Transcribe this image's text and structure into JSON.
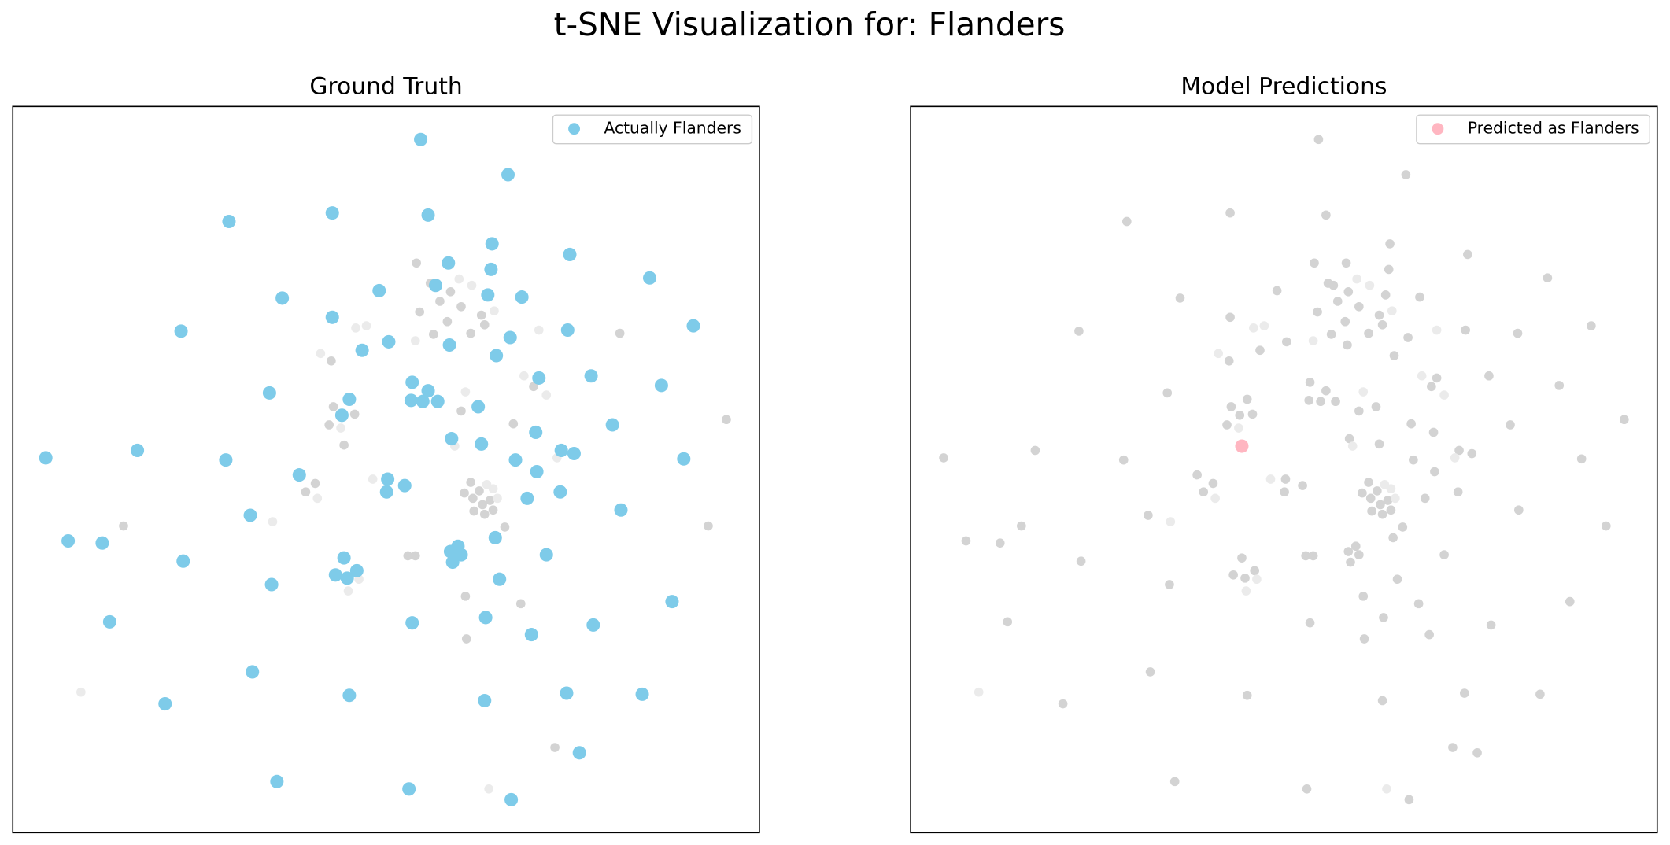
{
  "title": "t-SNE Visualization for:  Flanders",
  "chart_data": [
    {
      "type": "scatter",
      "title": "Ground Truth",
      "xlim": [
        12,
        713
      ],
      "ylim": [
        782,
        100
      ],
      "legend": "upper right",
      "series": [
        {
          "color": "#d3d3d3",
          "x": [
            391,
            423,
            404,
            413,
            394,
            433,
            452,
            420,
            407,
            455,
            442,
            311,
            582,
            501,
            313,
            333,
            309,
            433,
            482,
            323,
            682,
            296,
            287,
            442,
            450,
            436,
            444,
            460,
            453,
            445,
            455,
            463,
            474,
            116,
            665,
            383,
            390,
            437,
            489,
            438,
            521
          ],
          "y": [
            247,
            274,
            266,
            283,
            293,
            288,
            296,
            302,
            314,
            305,
            313,
            339,
            313,
            363,
            382,
            389,
            399,
            386,
            398,
            418,
            394,
            454,
            462,
            453,
            461,
            463,
            468,
            470,
            474,
            480,
            483,
            479,
            495,
            494,
            494,
            522,
            522,
            560,
            567,
            600,
            702
          ]
        },
        {
          "color": "#ebebeb",
          "x": [
            431,
            443,
            344,
            334,
            390,
            464,
            492,
            513,
            437,
            457,
            463,
            467,
            350,
            298,
            337,
            327,
            256,
            76,
            459,
            523,
            427,
            320,
            506,
            301
          ],
          "y": [
            262,
            268,
            306,
            308,
            320,
            292,
            353,
            371,
            368,
            455,
            459,
            468,
            450,
            468,
            544,
            555,
            490,
            650,
            741,
            430,
            419,
            402,
            310,
            332
          ]
        },
        {
          "name": "Actually  Flanders",
          "color": "#7ecbe9",
          "x": [
            395,
            477,
            215,
            312,
            402,
            462,
            535,
            421,
            461,
            610,
            409,
            458,
            490,
            356,
            265,
            170,
            312,
            533,
            651,
            365,
            340,
            422,
            479,
            466,
            387,
            402,
            506,
            555,
            328,
            386,
            397,
            411,
            253,
            621,
            449,
            321,
            575,
            503,
            424,
            452,
            527,
            539,
            43,
            129,
            212,
            484,
            642,
            504,
            281,
            364,
            380,
            363,
            526,
            495,
            583,
            235,
            465,
            64,
            96,
            430,
            423,
            433,
            425,
            513,
            172,
            323,
            335,
            315,
            326,
            255,
            469,
            631,
            103,
            387,
            456,
            557,
            499,
            237,
            328,
            155,
            455,
            532,
            603,
            544,
            260,
            384,
            480
          ],
          "y": [
            131,
            164,
            208,
            200,
            202,
            229,
            239,
            247,
            253,
            261,
            268,
            277,
            279,
            273,
            280,
            311,
            298,
            310,
            306,
            321,
            329,
            324,
            317,
            334,
            359,
            367,
            355,
            353,
            375,
            376,
            377,
            377,
            369,
            362,
            382,
            390,
            399,
            406,
            412,
            417,
            423,
            426,
            430,
            423,
            432,
            432,
            431,
            443,
            446,
            450,
            456,
            462,
            462,
            468,
            479,
            484,
            505,
            508,
            510,
            513,
            518,
            521,
            528,
            521,
            527,
            524,
            536,
            540,
            543,
            549,
            544,
            565,
            584,
            585,
            580,
            587,
            596,
            631,
            653,
            661,
            658,
            651,
            652,
            707,
            734,
            741,
            751
          ]
        }
      ]
    },
    {
      "type": "scatter",
      "title": "Model Predictions",
      "xlim": [
        12,
        713
      ],
      "ylim": [
        782,
        100
      ],
      "legend": "upper right",
      "series": [
        {
          "color": "#d3d3d3",
          "x": [
            395,
            477,
            215,
            312,
            402,
            462,
            535,
            421,
            461,
            610,
            409,
            458,
            490,
            356,
            265,
            170,
            312,
            533,
            651,
            365,
            340,
            422,
            479,
            466,
            387,
            402,
            506,
            555,
            328,
            386,
            397,
            411,
            253,
            621,
            449,
            321,
            575,
            503,
            424,
            452,
            527,
            539,
            43,
            129,
            212,
            484,
            642,
            504,
            281,
            364,
            380,
            363,
            526,
            495,
            583,
            235,
            465,
            64,
            96,
            430,
            423,
            433,
            425,
            513,
            172,
            323,
            335,
            315,
            326,
            255,
            469,
            631,
            103,
            387,
            456,
            557,
            499,
            237,
            328,
            155,
            455,
            532,
            603,
            544,
            260,
            384,
            480
          ],
          "y": [
            131,
            164,
            208,
            200,
            202,
            229,
            239,
            247,
            253,
            261,
            268,
            277,
            279,
            273,
            280,
            311,
            298,
            310,
            306,
            321,
            329,
            324,
            317,
            334,
            359,
            367,
            355,
            353,
            375,
            376,
            377,
            377,
            369,
            362,
            382,
            390,
            399,
            406,
            412,
            417,
            423,
            426,
            430,
            423,
            432,
            432,
            431,
            443,
            446,
            450,
            456,
            462,
            462,
            468,
            479,
            484,
            505,
            508,
            510,
            513,
            518,
            521,
            528,
            521,
            527,
            524,
            536,
            540,
            543,
            549,
            544,
            565,
            584,
            585,
            580,
            587,
            596,
            631,
            653,
            661,
            658,
            651,
            652,
            707,
            734,
            741,
            751
          ]
        },
        {
          "color": "#d3d3d3",
          "x": [
            391,
            423,
            404,
            413,
            394,
            433,
            452,
            420,
            407,
            455,
            442,
            311,
            582,
            501,
            313,
            333,
            309,
            433,
            482,
            682,
            296,
            287,
            442,
            450,
            436,
            444,
            460,
            453,
            445,
            455,
            463,
            474,
            116,
            665,
            383,
            390,
            437,
            489,
            438,
            521
          ],
          "y": [
            247,
            274,
            266,
            283,
            293,
            288,
            296,
            302,
            314,
            305,
            313,
            339,
            313,
            363,
            382,
            389,
            399,
            386,
            398,
            394,
            454,
            462,
            453,
            461,
            463,
            468,
            470,
            474,
            480,
            483,
            479,
            495,
            494,
            494,
            522,
            522,
            560,
            567,
            600,
            702
          ]
        },
        {
          "color": "#ebebeb",
          "x": [
            431,
            443,
            344,
            334,
            390,
            464,
            492,
            513,
            437,
            457,
            463,
            467,
            350,
            298,
            337,
            327,
            256,
            76,
            459,
            523,
            427,
            320,
            506,
            301
          ],
          "y": [
            262,
            268,
            306,
            308,
            320,
            292,
            353,
            371,
            368,
            455,
            459,
            468,
            450,
            468,
            544,
            555,
            490,
            650,
            741,
            430,
            419,
            402,
            310,
            332
          ]
        },
        {
          "name": "Predicted as  Flanders",
          "color": "#ffb6c1",
          "x": [
            323
          ],
          "y": [
            419
          ]
        }
      ]
    }
  ]
}
